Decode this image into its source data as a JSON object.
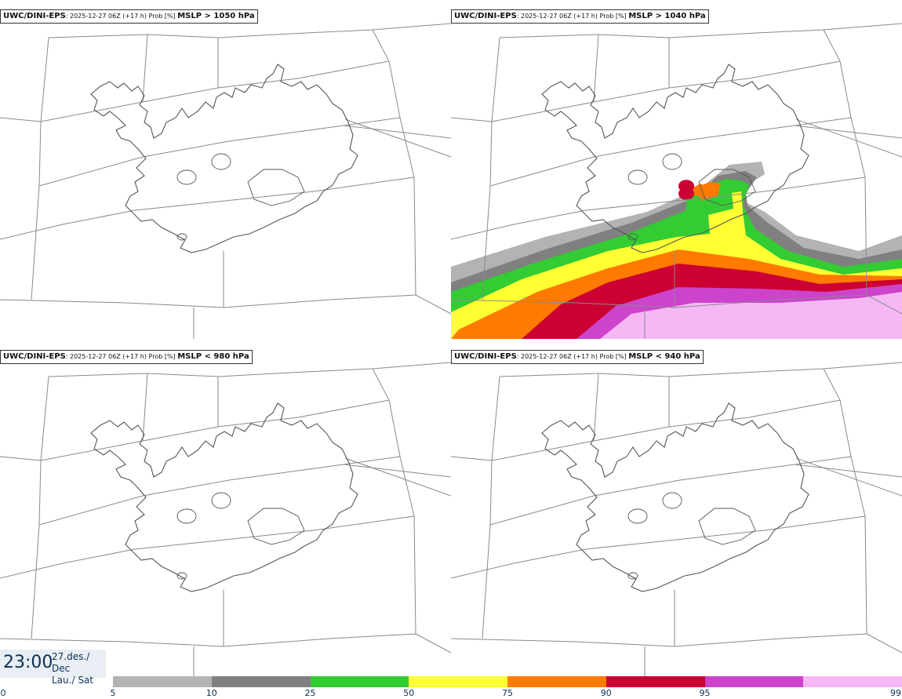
{
  "panels": [
    {
      "id": "p1",
      "model": "UWC/DINI-EPS",
      "meta": ": 2025-12-27 06Z (+17 h) Prob [%]",
      "threshold": "MSLP > 1050 hPa",
      "filled": false
    },
    {
      "id": "p2",
      "model": "UWC/DINI-EPS",
      "meta": ": 2025-12-27 06Z (+17 h) Prob [%]",
      "threshold": "MSLP > 1040 hPa",
      "filled": true
    },
    {
      "id": "p3",
      "model": "UWC/DINI-EPS",
      "meta": ": 2025-12-27 06Z (+17 h) Prob [%]",
      "threshold": "MSLP < 980 hPa",
      "filled": false
    },
    {
      "id": "p4",
      "model": "UWC/DINI-EPS",
      "meta": ": 2025-12-27 06Z (+17 h) Prob [%]",
      "threshold": "MSLP < 940 hPa",
      "filled": false
    }
  ],
  "timestamp": {
    "time": "23:00",
    "date_line1": "27.des./ Dec",
    "date_line2": "Lau./ Sat"
  },
  "legend": {
    "ticks": [
      "0",
      "5",
      "10",
      "25",
      "50",
      "75",
      "90",
      "95",
      "99"
    ],
    "colors": [
      "#b3b3b3",
      "#808080",
      "#33cc33",
      "#ffff33",
      "#ff7a00",
      "#cc0033",
      "#cc44cc",
      "#f5b8f5"
    ]
  }
}
